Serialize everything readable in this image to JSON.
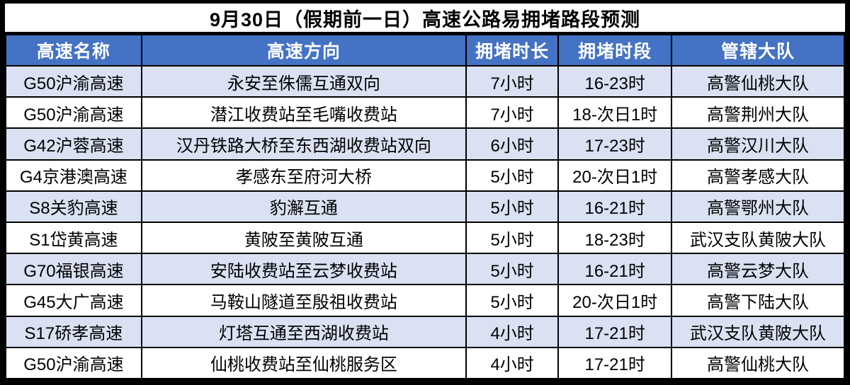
{
  "chart_data": {
    "type": "table",
    "title": "9月30日（假期前一日）高速公路易拥堵路段预测",
    "columns": [
      "高速名称",
      "高速方向",
      "拥堵时长",
      "拥堵时段",
      "管辖大队"
    ],
    "rows": [
      [
        "G50沪渝高速",
        "永安至侏儒互通双向",
        "7小时",
        "16-23时",
        "高警仙桃大队"
      ],
      [
        "G50沪渝高速",
        "潜江收费站至毛嘴收费站",
        "7小时",
        "18-次日1时",
        "高警荆州大队"
      ],
      [
        "G42沪蓉高速",
        "汉丹铁路大桥至东西湖收费站双向",
        "6小时",
        "17-23时",
        "高警汉川大队"
      ],
      [
        "G4京港澳高速",
        "孝感东至府河大桥",
        "5小时",
        "20-次日1时",
        "高警孝感大队"
      ],
      [
        "S8关豹高速",
        "豹澥互通",
        "5小时",
        "16-21时",
        "高警鄂州大队"
      ],
      [
        "S1岱黄高速",
        "黄陂至黄陂互通",
        "5小时",
        "18-23时",
        "武汉支队黄陂大队"
      ],
      [
        "G70福银高速",
        "安陆收费站至云梦收费站",
        "5小时",
        "16-21时",
        "高警云梦大队"
      ],
      [
        "G45大广高速",
        "马鞍山隧道至殷祖收费站",
        "5小时",
        "20-次日1时",
        "高警下陆大队"
      ],
      [
        "S17硚孝高速",
        "灯塔互通至西湖收费站",
        "4小时",
        "17-21时",
        "武汉支队黄陂大队"
      ],
      [
        "G50沪渝高速",
        "仙桃收费站至仙桃服务区",
        "4小时",
        "17-21时",
        "高警仙桃大队"
      ]
    ],
    "layout": {
      "legend": "none",
      "grid": "on"
    }
  },
  "colors": {
    "header_bg": "#4472C4",
    "header_text": "#FFFFFF",
    "row_alt_bg": "#D9E1F2",
    "row_bg": "#FFFFFF",
    "border": "#000000",
    "title_text": "#000000"
  }
}
